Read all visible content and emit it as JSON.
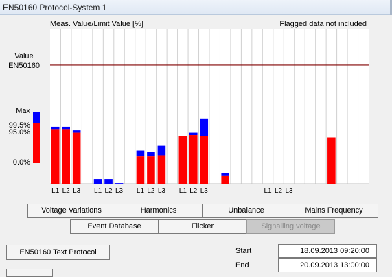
{
  "window": {
    "title": "EN50160 Protocol-System 1"
  },
  "chart_data": {
    "type": "bar",
    "title": "Meas. Value/Limit Value [%]",
    "note": "Flagged data not included",
    "ylabel": "Value\nEN50160",
    "ylim": [
      0,
      130
    ],
    "limit_line": 100,
    "colors": {
      "value": "#ff0000",
      "flagged": "#0000ff",
      "limit": "#800000",
      "grid": "#d0d0d0"
    },
    "categories": [
      "L1",
      "L2",
      "L3",
      "",
      "L1",
      "L2",
      "L3",
      "",
      "L1",
      "L2",
      "L3",
      "",
      "L1",
      "L2",
      "L3",
      "",
      "",
      "",
      "",
      "",
      "L1",
      "L2",
      "L3",
      "",
      "",
      "",
      "",
      "",
      "",
      ""
    ],
    "series": [
      {
        "name": "95.0%",
        "values": [
          46,
          46,
          43,
          0,
          0,
          0,
          0,
          0,
          23,
          23,
          24,
          0,
          40,
          41,
          40,
          0,
          7,
          0,
          0,
          0,
          0,
          0,
          0,
          0,
          0,
          0,
          39,
          0,
          0,
          0
        ]
      },
      {
        "name": "Max",
        "values": [
          48,
          48,
          45,
          0,
          4,
          4,
          0.5,
          0,
          28,
          27,
          32,
          0,
          40,
          43,
          55,
          0,
          9,
          0,
          0,
          0,
          0,
          0,
          0,
          0,
          0,
          0,
          39,
          0,
          0,
          0
        ]
      }
    ],
    "scale_legend": {
      "items": [
        {
          "label": "Max",
          "value": 45
        },
        {
          "label": "99.5%",
          "value": 40
        },
        {
          "label": "95.0%",
          "value": 35
        },
        {
          "label": "0.0%",
          "value": 0
        }
      ]
    }
  },
  "tabs_row1": [
    "Voltage Variations",
    "Harmonics",
    "Unbalance",
    "Mains Frequency"
  ],
  "tabs_row2": [
    "Event Database",
    "Flicker",
    "Signalling voltage"
  ],
  "text_protocol_button": "EN50160 Text Protocol",
  "start": {
    "label": "Start",
    "value": "18.09.2013  09:20:00"
  },
  "end": {
    "label": "End",
    "value": "20.09.2013  13:00:00"
  }
}
